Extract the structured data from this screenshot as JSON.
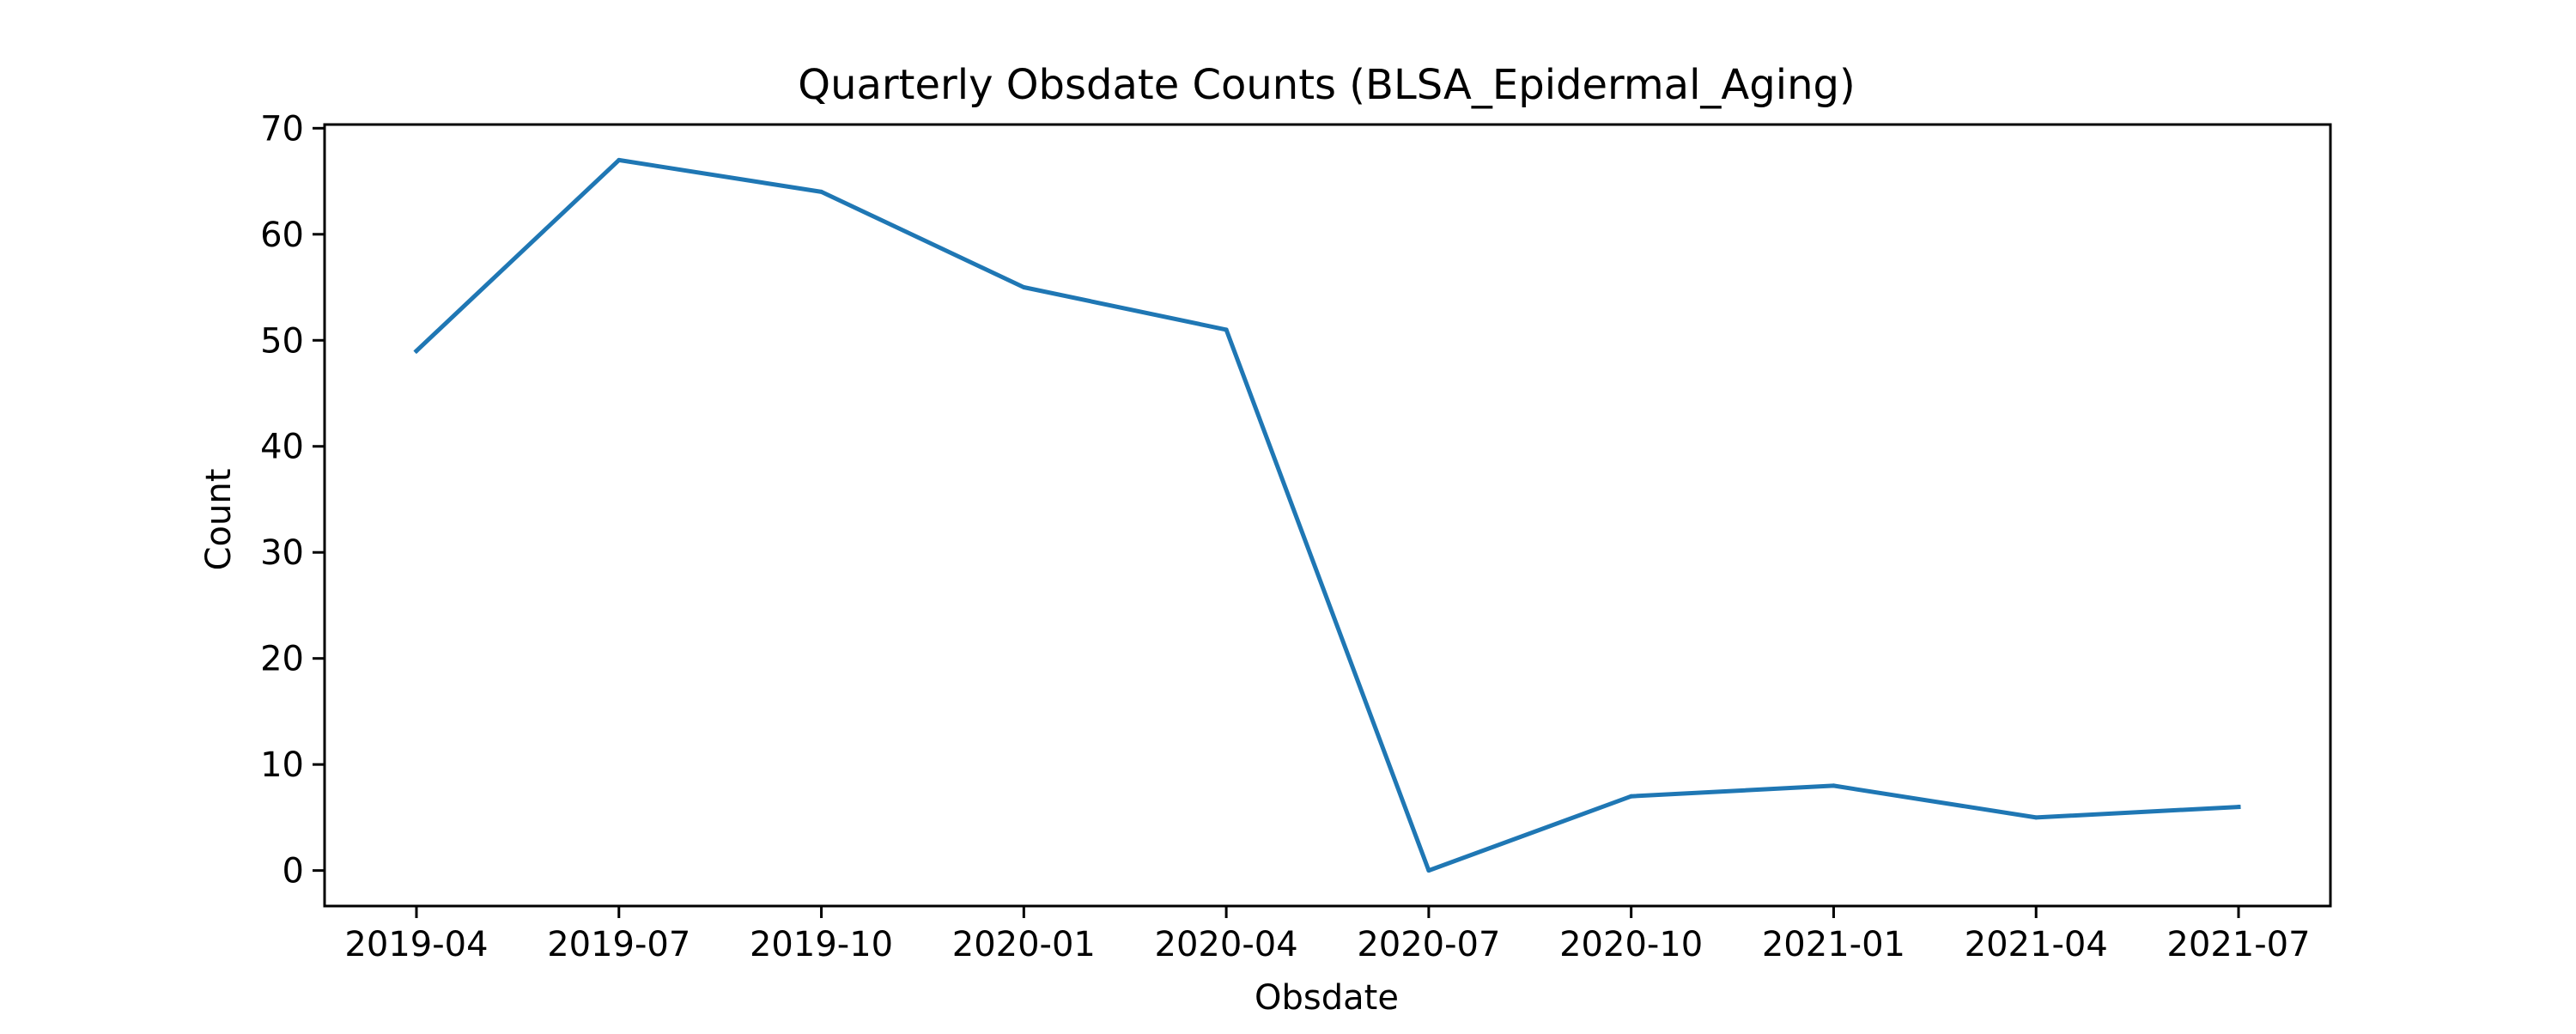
{
  "chart_data": {
    "type": "line",
    "title": "Quarterly Obsdate Counts (BLSA_Epidermal_Aging)",
    "xlabel": "Obsdate",
    "ylabel": "Count",
    "x": [
      "2019-04",
      "2019-07",
      "2019-10",
      "2020-01",
      "2020-04",
      "2020-07",
      "2020-10",
      "2021-01",
      "2021-04",
      "2021-07"
    ],
    "x_ticks": [
      "2019-04",
      "2019-07",
      "2019-10",
      "2020-01",
      "2020-04",
      "2020-07",
      "2020-10",
      "2021-01",
      "2021-04",
      "2021-07"
    ],
    "y_ticks": [
      0,
      10,
      20,
      30,
      40,
      50,
      60,
      70
    ],
    "ylim": [
      -3.35,
      70.35
    ],
    "series": [
      {
        "values": [
          49,
          67,
          64,
          55,
          51,
          0,
          7,
          8,
          5,
          6
        ],
        "color": "#1f77b4"
      }
    ],
    "grid": false,
    "legend": "none"
  }
}
